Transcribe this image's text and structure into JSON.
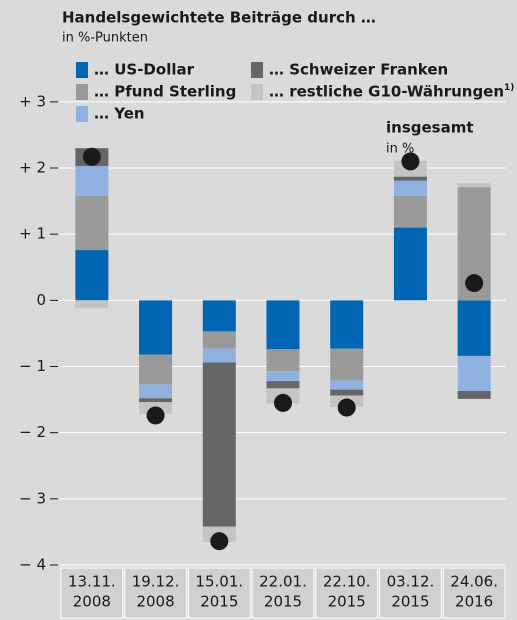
{
  "chart_data": {
    "type": "stacked-bar",
    "title": "Handelsgewichtete Beiträge durch …",
    "subtitle": "in %-Punkten",
    "categories": [
      [
        "13.11.",
        "2008"
      ],
      [
        "19.12.",
        "2008"
      ],
      [
        "15.01.",
        "2015"
      ],
      [
        "22.01.",
        "2015"
      ],
      [
        "22.10.",
        "2015"
      ],
      [
        "03.12.",
        "2015"
      ],
      [
        "24.06.",
        "2016"
      ]
    ],
    "series": [
      {
        "name": "… US-Dollar",
        "color": "#0066b3",
        "values": [
          0.76,
          -0.82,
          -0.47,
          -0.74,
          -0.73,
          1.1,
          -0.84
        ]
      },
      {
        "name": "… Pfund Sterling",
        "color": "#9a9a9a",
        "values": [
          0.82,
          -0.45,
          -0.26,
          -0.33,
          -0.48,
          0.48,
          1.71
        ]
      },
      {
        "name": "… Yen",
        "color": "#8fb1e0",
        "values": [
          0.45,
          -0.21,
          -0.21,
          -0.15,
          -0.14,
          0.23,
          -0.53
        ]
      },
      {
        "name": "… Schweizer Franken",
        "color": "#666666",
        "values": [
          0.27,
          -0.06,
          -2.48,
          -0.11,
          -0.09,
          0.06,
          -0.12
        ]
      },
      {
        "name": "… restliche G10-Währungen",
        "note": "1)",
        "color": "#c4c4c4",
        "values": [
          -0.12,
          -0.18,
          -0.23,
          -0.23,
          -0.17,
          0.24,
          0.06
        ]
      }
    ],
    "totals": {
      "name": "insgesamt",
      "unit": "in %",
      "color": "#1a1a1a",
      "values": [
        2.17,
        -1.74,
        -3.64,
        -1.55,
        -1.62,
        2.1,
        0.26
      ]
    },
    "ylim": [
      -4,
      3.3
    ],
    "yticks": [
      {
        "value": -4,
        "label": "− 4"
      },
      {
        "value": -3,
        "label": "− 3"
      },
      {
        "value": -2,
        "label": "− 2"
      },
      {
        "value": -1,
        "label": "− 1"
      },
      0,
      {
        "value": 1,
        "label": "+ 1"
      },
      {
        "value": 2,
        "label": "+ 2"
      },
      {
        "value": 3,
        "label": "+ 3"
      }
    ],
    "grid": true
  }
}
